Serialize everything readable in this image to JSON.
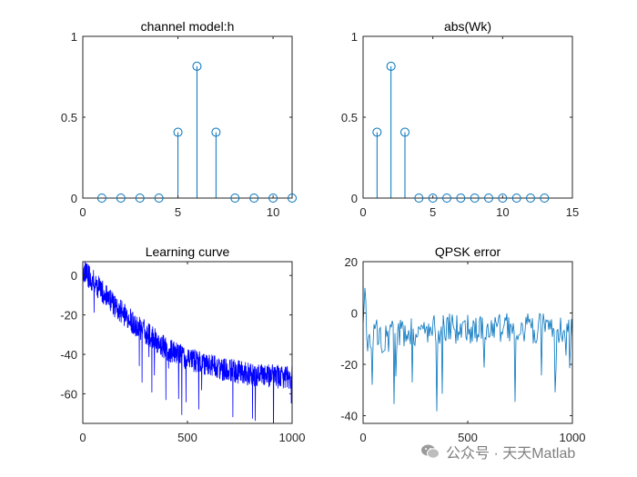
{
  "watermark": {
    "text": "公众号 · 天天Matlab"
  },
  "chart_data": [
    {
      "id": "h",
      "type": "stem",
      "title": "channel model:h",
      "xlim": [
        0,
        11
      ],
      "ylim": [
        0,
        1
      ],
      "xticks": [
        0,
        5,
        10
      ],
      "yticks": [
        0,
        0.5,
        1
      ],
      "ytick_labels": [
        "0",
        "0.5",
        "1"
      ],
      "color": "#0072BD",
      "x": [
        1,
        2,
        3,
        4,
        5,
        6,
        7,
        8,
        9,
        10,
        11
      ],
      "y": [
        0,
        0,
        0,
        0,
        0.407,
        0.815,
        0.407,
        0,
        0,
        0,
        0
      ]
    },
    {
      "id": "wk",
      "type": "stem",
      "title": "abs(Wk)",
      "xlim": [
        0,
        15
      ],
      "ylim": [
        0,
        1
      ],
      "xticks": [
        0,
        5,
        10,
        15
      ],
      "yticks": [
        0,
        0.5,
        1
      ],
      "ytick_labels": [
        "0",
        "0.5",
        "1"
      ],
      "color": "#0072BD",
      "x": [
        1,
        2,
        3,
        4,
        5,
        6,
        7,
        8,
        9,
        10,
        11,
        12,
        13
      ],
      "y": [
        0.407,
        0.815,
        0.407,
        0,
        0,
        0,
        0,
        0,
        0,
        0,
        0,
        0,
        0
      ]
    },
    {
      "id": "learning",
      "type": "line",
      "title": "Learning curve",
      "xlim": [
        0,
        1000
      ],
      "ylim": [
        -75,
        7
      ],
      "xticks": [
        0,
        500,
        1000
      ],
      "yticks": [
        0,
        -20,
        -40,
        -60
      ],
      "color": "#0000FF",
      "x": [
        0,
        50,
        100,
        150,
        200,
        250,
        300,
        350,
        400,
        450,
        500,
        550,
        600,
        650,
        700,
        750,
        800,
        850,
        900,
        950,
        1000
      ],
      "y": [
        3,
        -3,
        -9,
        -15,
        -20,
        -25,
        -29,
        -33,
        -37,
        -40,
        -42,
        -44,
        -45.5,
        -47,
        -48,
        -49,
        -50,
        -50.5,
        -51,
        -51.5,
        -52
      ],
      "noise": {
        "amplitude": 6,
        "spikes_down": 18,
        "samples": 1000
      }
    },
    {
      "id": "qpsk",
      "type": "line",
      "title": "QPSK error",
      "xlim": [
        0,
        1000
      ],
      "ylim": [
        -43,
        20
      ],
      "xticks": [
        0,
        500,
        1000
      ],
      "yticks": [
        20,
        0,
        -20,
        -40
      ],
      "color": "#0072BD",
      "x": [
        0,
        10,
        20,
        40,
        60,
        100,
        200,
        400,
        600,
        800,
        1000
      ],
      "y": [
        -5,
        12,
        -12,
        -8,
        -8,
        -10,
        -7,
        -6,
        -6,
        -6,
        -6
      ],
      "noise": {
        "amplitude": 6,
        "spikes_down": 14,
        "samples": 230
      }
    }
  ]
}
